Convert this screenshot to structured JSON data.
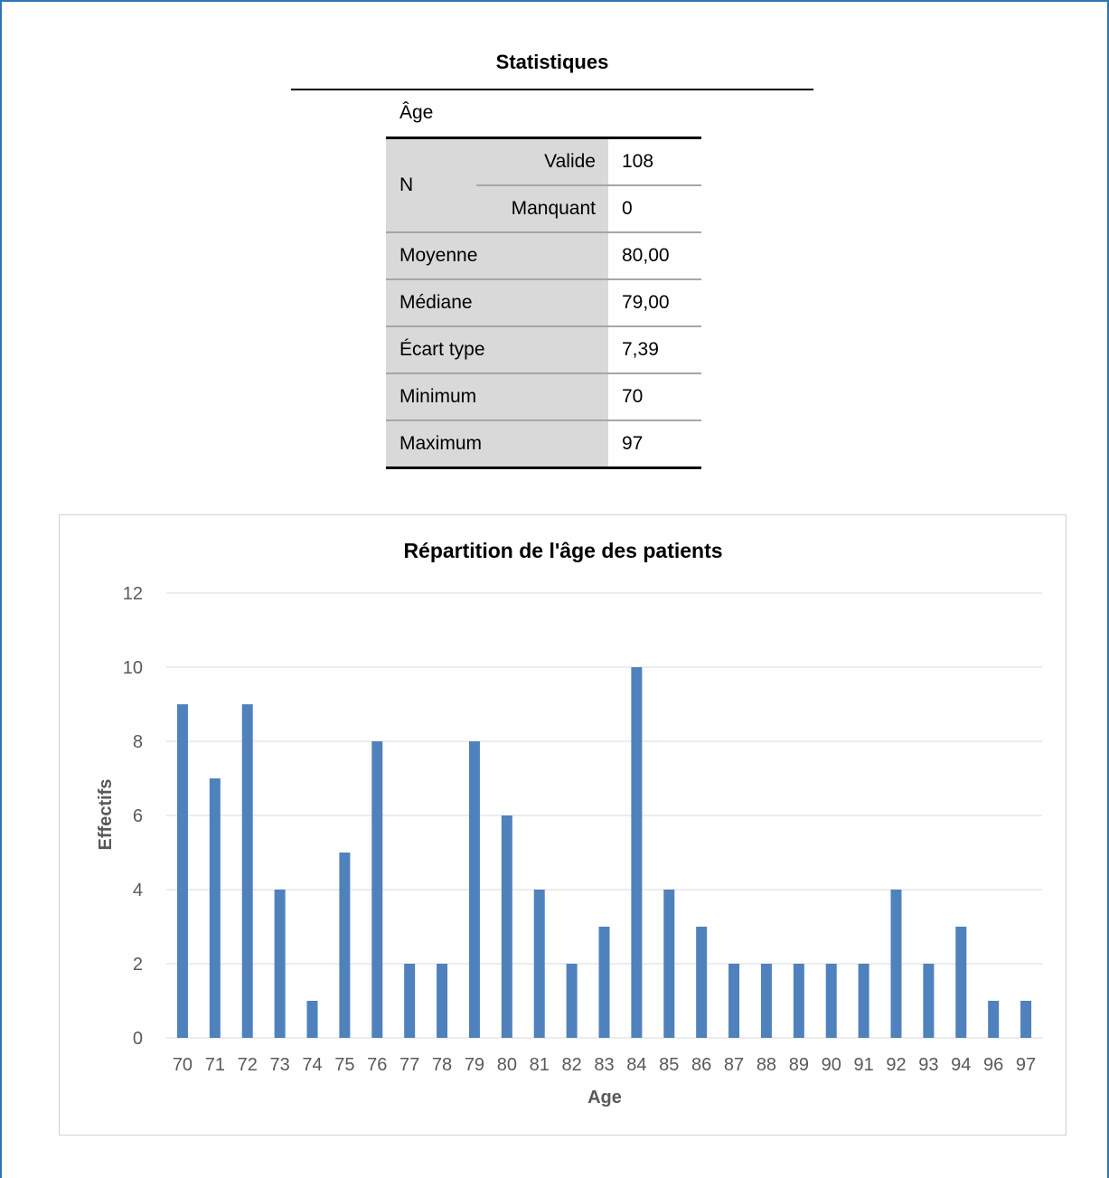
{
  "stats": {
    "title": "Statistiques",
    "variable": "Âge",
    "n_label": "N",
    "rows": {
      "valide": {
        "label": "Valide",
        "value": "108"
      },
      "manquant": {
        "label": "Manquant",
        "value": "0"
      },
      "moyenne": {
        "label": "Moyenne",
        "value": "80,00"
      },
      "mediane": {
        "label": "Médiane",
        "value": "79,00"
      },
      "ecart": {
        "label": "Écart type",
        "value": "7,39"
      },
      "minimum": {
        "label": "Minimum",
        "value": "70"
      },
      "maximum": {
        "label": "Maximum",
        "value": "97"
      }
    }
  },
  "colors": {
    "bar": "#4f81bd",
    "grid": "#d9d9d9",
    "frame": "#2e75b6"
  },
  "chart_data": {
    "type": "bar",
    "title": "Répartition de l'âge des patients",
    "xlabel": "Age",
    "ylabel": "Effectifs",
    "ylim": [
      0,
      12
    ],
    "yticks": [
      "0",
      "2",
      "4",
      "6",
      "8",
      "10",
      "12"
    ],
    "grid": true,
    "categories": [
      "70",
      "71",
      "72",
      "73",
      "74",
      "75",
      "76",
      "77",
      "78",
      "79",
      "80",
      "81",
      "82",
      "83",
      "84",
      "85",
      "86",
      "87",
      "88",
      "89",
      "90",
      "91",
      "92",
      "93",
      "94",
      "96",
      "97"
    ],
    "values": [
      9,
      7,
      9,
      4,
      1,
      5,
      8,
      2,
      2,
      8,
      6,
      4,
      2,
      3,
      10,
      4,
      3,
      2,
      2,
      2,
      2,
      2,
      4,
      2,
      3,
      1,
      1
    ]
  }
}
